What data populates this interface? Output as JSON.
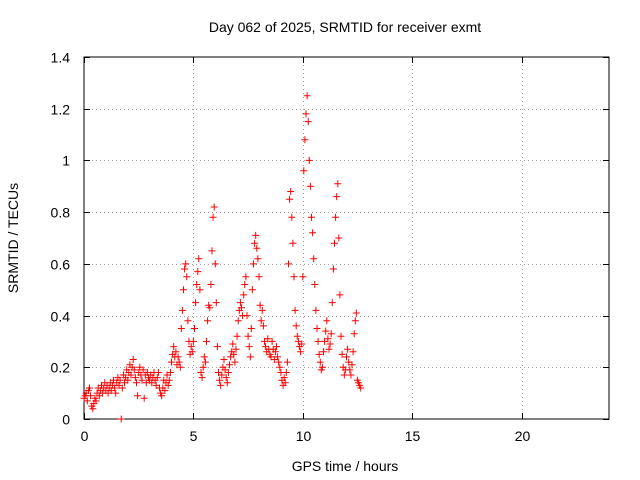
{
  "chart_data": {
    "type": "scatter",
    "title": "Day 062 of 2025, SRMTID for receiver exmt",
    "xlabel": "GPS time / hours",
    "ylabel": "SRMTID / TECUs",
    "xlim": [
      0,
      24
    ],
    "ylim": [
      0,
      1.4
    ],
    "xticks": [
      0,
      5,
      10,
      15,
      20
    ],
    "yticks": [
      0,
      0.2,
      0.4,
      0.6,
      0.8,
      1,
      1.2,
      1.4
    ],
    "xtick_labels": [
      "0",
      "5",
      "10",
      "15",
      "20"
    ],
    "ytick_labels": [
      "0",
      "0.2",
      "0.4",
      "0.6",
      "0.8",
      "1",
      "1.2",
      "1.4"
    ],
    "grid": true,
    "marker": "plus",
    "color": "#ff0000",
    "series": [
      {
        "name": "SRMTID",
        "points": [
          [
            0.0,
            0.08
          ],
          [
            0.05,
            0.09
          ],
          [
            0.1,
            0.1
          ],
          [
            0.15,
            0.07
          ],
          [
            0.2,
            0.11
          ],
          [
            0.25,
            0.12
          ],
          [
            0.3,
            0.09
          ],
          [
            0.35,
            0.05
          ],
          [
            0.4,
            0.04
          ],
          [
            0.45,
            0.06
          ],
          [
            0.5,
            0.08
          ],
          [
            0.55,
            0.07
          ],
          [
            0.6,
            0.1
          ],
          [
            0.65,
            0.12
          ],
          [
            0.7,
            0.09
          ],
          [
            0.75,
            0.11
          ],
          [
            0.8,
            0.13
          ],
          [
            0.85,
            0.1
          ],
          [
            0.9,
            0.12
          ],
          [
            0.95,
            0.14
          ],
          [
            1.0,
            0.11
          ],
          [
            1.05,
            0.13
          ],
          [
            1.1,
            0.1
          ],
          [
            1.15,
            0.12
          ],
          [
            1.2,
            0.14
          ],
          [
            1.25,
            0.11
          ],
          [
            1.3,
            0.13
          ],
          [
            1.35,
            0.15
          ],
          [
            1.4,
            0.12
          ],
          [
            1.45,
            0.1
          ],
          [
            1.5,
            0.14
          ],
          [
            1.55,
            0.16
          ],
          [
            1.6,
            0.13
          ],
          [
            1.65,
            0.15
          ],
          [
            1.7,
            0.0
          ],
          [
            1.75,
            0.12
          ],
          [
            1.8,
            0.17
          ],
          [
            1.85,
            0.14
          ],
          [
            1.9,
            0.16
          ],
          [
            1.95,
            0.19
          ],
          [
            2.0,
            0.15
          ],
          [
            2.05,
            0.18
          ],
          [
            2.1,
            0.21
          ],
          [
            2.15,
            0.17
          ],
          [
            2.2,
            0.2
          ],
          [
            2.25,
            0.23
          ],
          [
            2.3,
            0.19
          ],
          [
            2.35,
            0.16
          ],
          [
            2.4,
            0.14
          ],
          [
            2.45,
            0.09
          ],
          [
            2.5,
            0.18
          ],
          [
            2.55,
            0.2
          ],
          [
            2.6,
            0.17
          ],
          [
            2.65,
            0.15
          ],
          [
            2.7,
            0.19
          ],
          [
            2.75,
            0.08
          ],
          [
            2.8,
            0.17
          ],
          [
            2.85,
            0.14
          ],
          [
            2.9,
            0.18
          ],
          [
            2.95,
            0.16
          ],
          [
            3.0,
            0.15
          ],
          [
            3.05,
            0.17
          ],
          [
            3.1,
            0.14
          ],
          [
            3.15,
            0.16
          ],
          [
            3.2,
            0.18
          ],
          [
            3.25,
            0.15
          ],
          [
            3.3,
            0.13
          ],
          [
            3.35,
            0.16
          ],
          [
            3.4,
            0.18
          ],
          [
            3.45,
            0.12
          ],
          [
            3.5,
            0.1
          ],
          [
            3.55,
            0.09
          ],
          [
            3.6,
            0.12
          ],
          [
            3.65,
            0.15
          ],
          [
            3.7,
            0.11
          ],
          [
            3.75,
            0.14
          ],
          [
            3.8,
            0.17
          ],
          [
            3.85,
            0.13
          ],
          [
            3.9,
            0.15
          ],
          [
            3.95,
            0.18
          ],
          [
            4.0,
            0.22
          ],
          [
            4.05,
            0.25
          ],
          [
            4.1,
            0.28
          ],
          [
            4.15,
            0.24
          ],
          [
            4.2,
            0.26
          ],
          [
            4.25,
            0.21
          ],
          [
            4.3,
            0.24
          ],
          [
            4.35,
            0.22
          ],
          [
            4.4,
            0.2
          ],
          [
            4.45,
            0.35
          ],
          [
            4.5,
            0.42
          ],
          [
            4.55,
            0.5
          ],
          [
            4.6,
            0.58
          ],
          [
            4.65,
            0.6
          ],
          [
            4.7,
            0.55
          ],
          [
            4.75,
            0.38
          ],
          [
            4.8,
            0.3
          ],
          [
            4.85,
            0.25
          ],
          [
            4.9,
            0.28
          ],
          [
            4.95,
            0.26
          ],
          [
            5.0,
            0.3
          ],
          [
            5.05,
            0.35
          ],
          [
            5.1,
            0.45
          ],
          [
            5.15,
            0.52
          ],
          [
            5.2,
            0.57
          ],
          [
            5.25,
            0.62
          ],
          [
            5.3,
            0.5
          ],
          [
            5.35,
            0.18
          ],
          [
            5.4,
            0.16
          ],
          [
            5.45,
            0.2
          ],
          [
            5.5,
            0.24
          ],
          [
            5.55,
            0.22
          ],
          [
            5.6,
            0.3
          ],
          [
            5.65,
            0.38
          ],
          [
            5.7,
            0.44
          ],
          [
            5.75,
            0.43
          ],
          [
            5.8,
            0.52
          ],
          [
            5.85,
            0.65
          ],
          [
            5.9,
            0.78
          ],
          [
            5.95,
            0.82
          ],
          [
            6.0,
            0.6
          ],
          [
            6.05,
            0.45
          ],
          [
            6.1,
            0.28
          ],
          [
            6.15,
            0.18
          ],
          [
            6.2,
            0.15
          ],
          [
            6.25,
            0.13
          ],
          [
            6.3,
            0.17
          ],
          [
            6.35,
            0.2
          ],
          [
            6.4,
            0.23
          ],
          [
            6.45,
            0.19
          ],
          [
            6.5,
            0.16
          ],
          [
            6.55,
            0.14
          ],
          [
            6.6,
            0.18
          ],
          [
            6.65,
            0.21
          ],
          [
            6.7,
            0.24
          ],
          [
            6.75,
            0.26
          ],
          [
            6.8,
            0.29
          ],
          [
            6.85,
            0.25
          ],
          [
            6.9,
            0.22
          ],
          [
            6.95,
            0.27
          ],
          [
            7.0,
            0.32
          ],
          [
            7.05,
            0.38
          ],
          [
            7.1,
            0.42
          ],
          [
            7.15,
            0.45
          ],
          [
            7.2,
            0.43
          ],
          [
            7.25,
            0.4
          ],
          [
            7.3,
            0.48
          ],
          [
            7.35,
            0.52
          ],
          [
            7.4,
            0.55
          ],
          [
            7.45,
            0.4
          ],
          [
            7.5,
            0.32
          ],
          [
            7.55,
            0.28
          ],
          [
            7.6,
            0.24
          ],
          [
            7.65,
            0.35
          ],
          [
            7.7,
            0.5
          ],
          [
            7.75,
            0.6
          ],
          [
            7.8,
            0.68
          ],
          [
            7.85,
            0.71
          ],
          [
            7.9,
            0.66
          ],
          [
            7.95,
            0.62
          ],
          [
            8.0,
            0.55
          ],
          [
            8.05,
            0.44
          ],
          [
            8.1,
            0.38
          ],
          [
            8.15,
            0.42
          ],
          [
            8.2,
            0.36
          ],
          [
            8.25,
            0.3
          ],
          [
            8.3,
            0.28
          ],
          [
            8.35,
            0.26
          ],
          [
            8.4,
            0.31
          ],
          [
            8.45,
            0.27
          ],
          [
            8.5,
            0.25
          ],
          [
            8.55,
            0.24
          ],
          [
            8.6,
            0.3
          ],
          [
            8.65,
            0.27
          ],
          [
            8.7,
            0.23
          ],
          [
            8.75,
            0.26
          ],
          [
            8.8,
            0.28
          ],
          [
            8.85,
            0.24
          ],
          [
            8.9,
            0.22
          ],
          [
            8.95,
            0.2
          ],
          [
            9.0,
            0.18
          ],
          [
            9.05,
            0.15
          ],
          [
            9.1,
            0.13
          ],
          [
            9.15,
            0.16
          ],
          [
            9.2,
            0.14
          ],
          [
            9.25,
            0.18
          ],
          [
            9.3,
            0.22
          ],
          [
            9.35,
            0.6
          ],
          [
            9.4,
            0.85
          ],
          [
            9.45,
            0.88
          ],
          [
            9.5,
            0.78
          ],
          [
            9.55,
            0.68
          ],
          [
            9.6,
            0.55
          ],
          [
            9.65,
            0.42
          ],
          [
            9.7,
            0.36
          ],
          [
            9.75,
            0.32
          ],
          [
            9.8,
            0.3
          ],
          [
            9.85,
            0.28
          ],
          [
            9.9,
            0.26
          ],
          [
            9.95,
            0.29
          ],
          [
            10.0,
            0.55
          ],
          [
            10.05,
            0.96
          ],
          [
            10.1,
            1.08
          ],
          [
            10.15,
            1.18
          ],
          [
            10.2,
            1.25
          ],
          [
            10.25,
            1.15
          ],
          [
            10.3,
            1.0
          ],
          [
            10.35,
            0.9
          ],
          [
            10.4,
            0.78
          ],
          [
            10.45,
            0.72
          ],
          [
            10.5,
            0.62
          ],
          [
            10.55,
            0.52
          ],
          [
            10.6,
            0.42
          ],
          [
            10.65,
            0.35
          ],
          [
            10.7,
            0.3
          ],
          [
            10.75,
            0.25
          ],
          [
            10.8,
            0.22
          ],
          [
            10.85,
            0.19
          ],
          [
            10.9,
            0.2
          ],
          [
            10.95,
            0.26
          ],
          [
            11.0,
            0.3
          ],
          [
            11.05,
            0.34
          ],
          [
            11.1,
            0.38
          ],
          [
            11.15,
            0.31
          ],
          [
            11.2,
            0.27
          ],
          [
            11.25,
            0.29
          ],
          [
            11.3,
            0.33
          ],
          [
            11.35,
            0.45
          ],
          [
            11.4,
            0.58
          ],
          [
            11.45,
            0.68
          ],
          [
            11.5,
            0.78
          ],
          [
            11.55,
            0.86
          ],
          [
            11.6,
            0.91
          ],
          [
            11.65,
            0.7
          ],
          [
            11.7,
            0.48
          ],
          [
            11.75,
            0.32
          ],
          [
            11.8,
            0.25
          ],
          [
            11.85,
            0.2
          ],
          [
            11.9,
            0.17
          ],
          [
            11.95,
            0.19
          ],
          [
            12.0,
            0.24
          ],
          [
            12.05,
            0.27
          ],
          [
            12.1,
            0.22
          ],
          [
            12.15,
            0.19
          ],
          [
            12.2,
            0.17
          ],
          [
            12.25,
            0.21
          ],
          [
            12.3,
            0.26
          ],
          [
            12.35,
            0.33
          ],
          [
            12.4,
            0.38
          ],
          [
            12.45,
            0.41
          ],
          [
            12.5,
            0.15
          ],
          [
            12.55,
            0.14
          ],
          [
            12.6,
            0.13
          ],
          [
            12.65,
            0.12
          ]
        ]
      }
    ]
  }
}
